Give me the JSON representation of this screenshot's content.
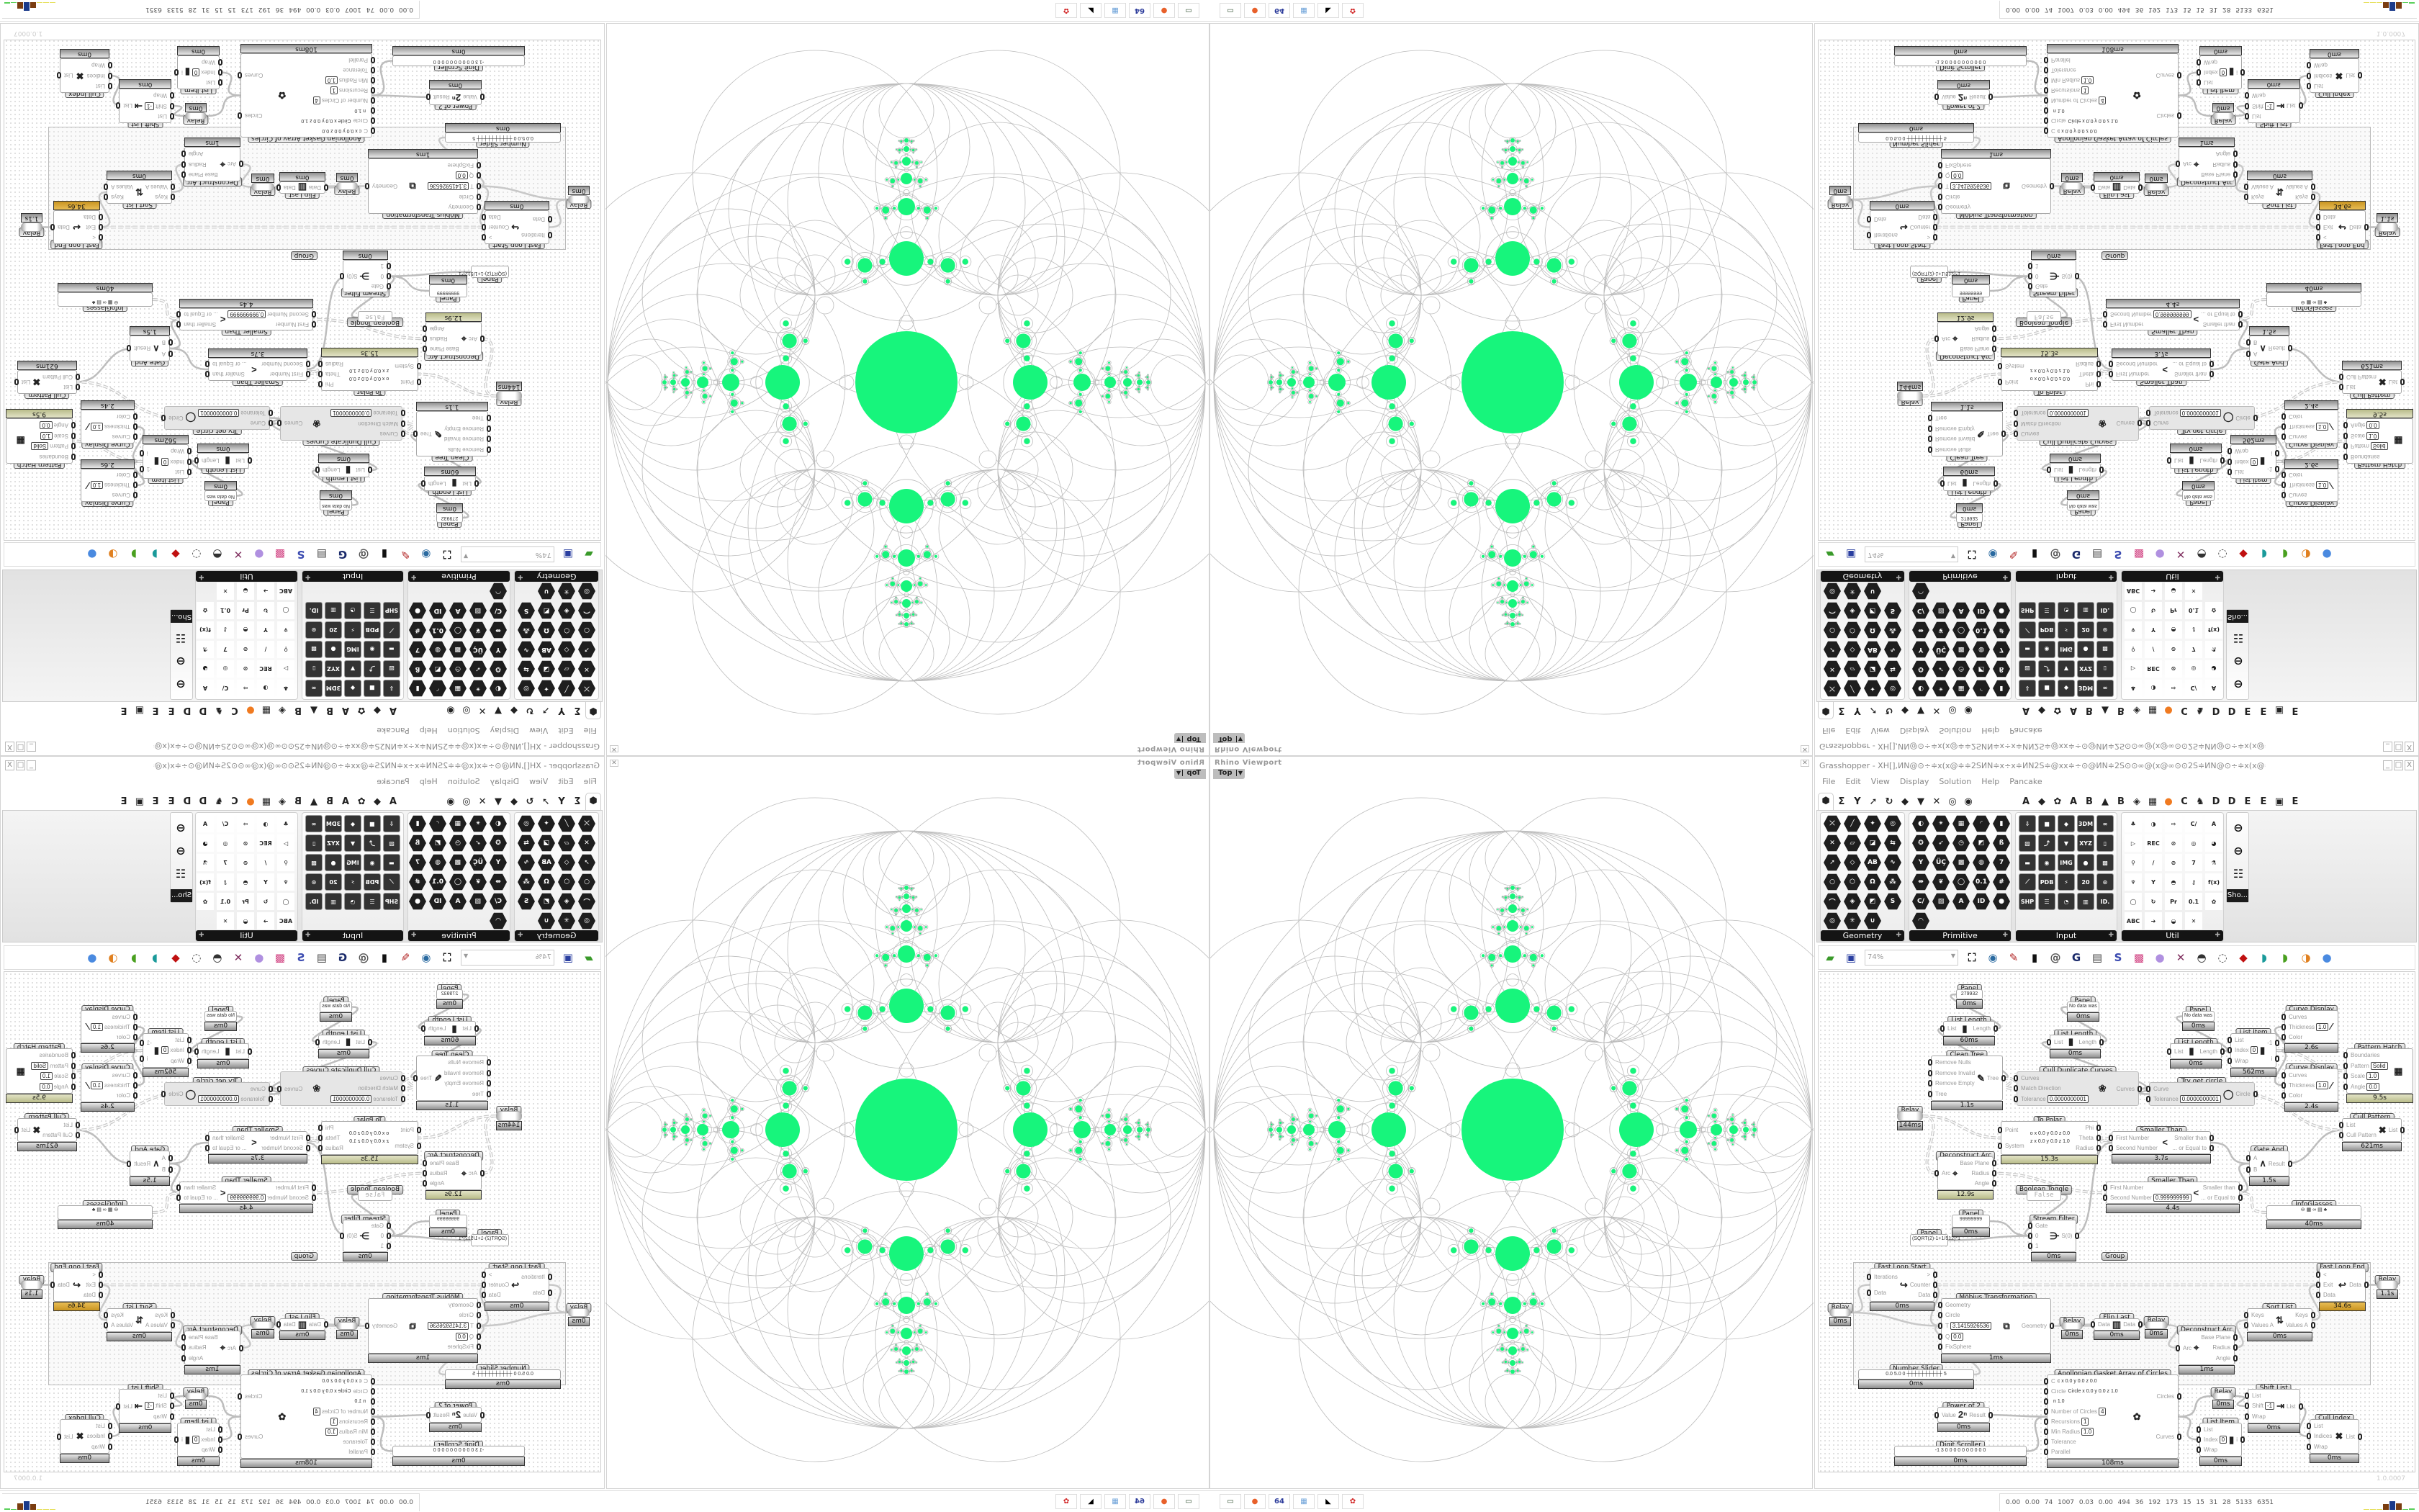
{
  "window": {
    "title": "Grasshopper - XH[],ИN@⊙÷≑x(x@≑≑2SИN≑x÷x≑ИN2S≑@xx≑÷⊙@ИN≑2S⊙⊙∞@(x@∞⊙⊙2S≑ИN@⊙÷≑x(x@≑≑2SИN≑x÷x≑ИN2S≑@xx≑÷⊙@ИN,",
    "controls": {
      "minimize": "_",
      "maximize": "□",
      "close": "X"
    }
  },
  "menu": [
    "File",
    "Edit",
    "View",
    "Display",
    "Solution",
    "Help",
    "Pancake"
  ],
  "tab_row": {
    "icons": [
      "⬢",
      "Σ",
      "Y",
      "➚",
      "↻",
      "◆",
      "▼",
      "✕",
      "◎",
      "◉"
    ],
    "letters": [
      "A",
      "◆",
      "✿",
      "A",
      "B",
      "▲",
      "B",
      "◈",
      "▦",
      "●",
      "C",
      "♞",
      "D",
      "D",
      "E",
      "E",
      "▣",
      "E"
    ]
  },
  "palette": [
    {
      "name": "Geometry",
      "icons": [
        "⤫",
        "╱",
        "✦",
        "◎",
        "✕",
        "▱",
        "◪",
        "⇆",
        "➚",
        "◇",
        "AB",
        "∿",
        "○",
        "⬡",
        "Ω",
        "⁂",
        "⌒",
        "◈",
        "◩",
        "S",
        "◎",
        "✳",
        "∪"
      ]
    },
    {
      "name": "Primitive",
      "icons": [
        "◐",
        "✴",
        "▦",
        "◜",
        "▮",
        "✪",
        "➶",
        "◷",
        "◩",
        "ß",
        "Y",
        "ÜÇ",
        "▩",
        "◍",
        "7",
        "⇹",
        "❦",
        "◯",
        "0.1",
        "#",
        "C/",
        "▨",
        "A",
        "ID",
        "●",
        "◠"
      ]
    },
    {
      "name": "Input",
      "icons": [
        "⇩",
        "■",
        "◆",
        "3DM",
        "∞",
        "▧",
        "⤴",
        "▼",
        "XYZ",
        "▯",
        "▬",
        "◉",
        "IMG",
        "●",
        "▩",
        "⟋",
        "PDB",
        "⚡",
        "20",
        "⊙",
        "SHP",
        "☰",
        "◔",
        "▥",
        "ID."
      ]
    },
    {
      "name": "Util",
      "icons": [
        "♣",
        "◑",
        "⇨",
        "C/",
        "A",
        "▷",
        "REC",
        "⊘",
        "◎",
        "◕",
        "⚲",
        "/",
        "⊘",
        "7",
        "⚗",
        "♆",
        "Y",
        "◓",
        "⚷",
        "f(x)",
        "◯",
        "↻",
        "Pr",
        "0.1",
        "✿",
        "ABC",
        "➔",
        "◒",
        "✕"
      ]
    }
  ],
  "palette_extra": {
    "label": "Sho...",
    "icons": [
      "⊖",
      "⊖",
      "☷"
    ]
  },
  "toolbar": {
    "zoom": "74%",
    "icons": [
      {
        "name": "open-file-icon",
        "glyph": "▰",
        "color": "#3a9a2a"
      },
      {
        "name": "save-file-icon",
        "glyph": "▣",
        "color": "#2a3fa0"
      },
      {
        "name": "zoom-extents-icon",
        "glyph": "⛶",
        "color": "#111111"
      },
      {
        "name": "preview-icon",
        "glyph": "◉",
        "color": "#2a6aa0"
      },
      {
        "name": "sketch-icon",
        "glyph": "✎",
        "color": "#b02020"
      },
      {
        "name": "bake-icon",
        "glyph": "▮",
        "color": "#111111"
      },
      {
        "name": "cluster-icon",
        "glyph": "@",
        "color": "#555555"
      },
      {
        "name": "gha-icon",
        "glyph": "G",
        "color": "#1a2a6a"
      },
      {
        "name": "viewer-icon",
        "glyph": "▤",
        "color": "#444444"
      },
      {
        "name": "search-icon",
        "glyph": "S",
        "color": "#3a4ab0"
      },
      {
        "name": "package-icon",
        "glyph": "▩",
        "color": "#d04080"
      },
      {
        "name": "bulb-icon",
        "glyph": "●",
        "color": "#b090e0"
      },
      {
        "name": "twist-icon",
        "glyph": "✕",
        "color": "#803060"
      },
      {
        "name": "shaded-icon",
        "glyph": "◓",
        "color": "#333333"
      },
      {
        "name": "wireframe-icon",
        "glyph": "◌",
        "color": "#333333"
      },
      {
        "name": "render-icon",
        "glyph": "◆",
        "color": "#c01010"
      },
      {
        "name": "teal-shape-icon",
        "glyph": "◗",
        "color": "#1a9a9a"
      },
      {
        "name": "green-shape-icon",
        "glyph": "◗",
        "color": "#4aa020"
      },
      {
        "name": "orange-sphere-icon",
        "glyph": "◑",
        "color": "#e08020"
      },
      {
        "name": "blue-sphere-icon",
        "glyph": "●",
        "color": "#4a8ae0"
      }
    ]
  },
  "canvas": {
    "group_label": "Group",
    "version": "1.0.0007",
    "components": [
      {
        "label": "Panel",
        "kind": "panel",
        "text": "279932",
        "timer": "0ms"
      },
      {
        "label": "List Length",
        "inputs": [
          "List"
        ],
        "outputs": [
          "Length"
        ],
        "glyph": "▮",
        "timer": "60ms"
      },
      {
        "label": "Clean Tree",
        "inputs": [
          "Remove Nulls",
          "Remove Invalid",
          "Remove Empty",
          "Tree"
        ],
        "outputs": [
          "Tree"
        ],
        "glyph": "✎",
        "timer": "1.1s"
      },
      {
        "label": "Panel",
        "kind": "panel",
        "text": "No data was",
        "timer": "0ms"
      },
      {
        "label": "List Length",
        "inputs": [
          "List"
        ],
        "outputs": [
          "Length"
        ],
        "glyph": "▮",
        "timer": "0ms"
      },
      {
        "label": "Cull Duplicate Curves",
        "state": "disabled",
        "inputs": [
          "Curves",
          "Match Direction",
          "Tolerance"
        ],
        "outputs": [
          "Curves"
        ],
        "params": {
          "Tolerance": "0.0000000001"
        },
        "glyph": "❀"
      },
      {
        "label": "Relay",
        "kind": "relay",
        "timer": "144ms"
      },
      {
        "label": "To Polar",
        "inputs": [
          "Point",
          "System"
        ],
        "outputs": [
          "Phi",
          "Theta",
          "Radius"
        ],
        "extra": [
          "o x 0.0 y 0.0 z 0.0",
          "z x 0.0 y 0.0 z 1.0"
        ],
        "timer": "15.3s",
        "timer_state": "olive"
      },
      {
        "label": "Deconstruct Arc",
        "inputs": [
          "Arc"
        ],
        "outputs": [
          "Base Plane",
          "Radius",
          "Angle"
        ],
        "glyph": "⌖",
        "timer": "12.9s",
        "timer_state": "olive"
      },
      {
        "label": "Boolean Toggle",
        "kind": "toggle",
        "text": "False"
      },
      {
        "label": "Panel",
        "kind": "panel",
        "text": "No data was",
        "timer": "0ms"
      },
      {
        "label": "List Length",
        "inputs": [
          "List"
        ],
        "outputs": [
          "Length"
        ],
        "glyph": "▮",
        "timer": "0ms"
      },
      {
        "label": "List Item",
        "inputs": [
          "List",
          "Index",
          "Wrap"
        ],
        "outputs": [
          "-1",
          "i"
        ],
        "params": {
          "Index": "0"
        },
        "glyph": "▮",
        "timer": "562ms"
      },
      {
        "label": "Curve Display",
        "inputs": [
          "Curves",
          "Thickness",
          "Color"
        ],
        "outputs": [],
        "params": {
          "Thickness": "1.0"
        },
        "glyph": "∕",
        "timer": "2.6s"
      },
      {
        "label": "Curve Display",
        "inputs": [
          "Curves",
          "Thickness",
          "Color"
        ],
        "outputs": [],
        "params": {
          "Thickness": "1.0"
        },
        "glyph": "∕",
        "timer": "2.4s"
      },
      {
        "label": "Pattern Hatch",
        "inputs": [
          "Boundaries",
          "Pattern",
          "Scale",
          "Angle"
        ],
        "outputs": [],
        "params": {
          "Pattern": "Solid",
          "Scale": "1.0",
          "Angle": "0.0"
        },
        "glyph": "▦",
        "timer": "9.5s",
        "timer_state": "olive"
      },
      {
        "label": "Try get circle",
        "state": "disabled",
        "inputs": [
          "Curve",
          "Tolerance"
        ],
        "outputs": [
          "Circle"
        ],
        "params": {
          "Tolerance": "0.0000000001"
        },
        "glyph": "◯"
      },
      {
        "label": "Smaller Than",
        "inputs": [
          "First Number",
          "Second Number"
        ],
        "outputs": [
          "Smaller than",
          "... or Equal to"
        ],
        "glyph": "<",
        "timer": "3.7s"
      },
      {
        "label": "Smaller Than",
        "inputs": [
          "First Number",
          "Second Number"
        ],
        "outputs": [
          "Smaller than",
          "... or Equal to"
        ],
        "params": {
          "Second Number": "0.999999999"
        },
        "glyph": "<",
        "timer": "4.4s"
      },
      {
        "label": "Gate And",
        "inputs": [
          "A",
          "B"
        ],
        "outputs": [
          "Result"
        ],
        "glyph": "∧",
        "timer": "1.5s"
      },
      {
        "label": "Cull Pattern",
        "inputs": [
          "List",
          "Cull Pattern"
        ],
        "outputs": [
          "List"
        ],
        "glyph": "✖",
        "timer": "621ms"
      },
      {
        "label": "Stream Filter",
        "inputs": [
          "Gate",
          "0",
          "1"
        ],
        "outputs": [
          "S(0)"
        ],
        "glyph": "⋺",
        "timer": "0ms"
      },
      {
        "label": "Panel",
        "kind": "panel",
        "text": "99999999",
        "timer": "0ms"
      },
      {
        "label": "Panel",
        "kind": "panel",
        "text": "(SQRT(2)-1+1/512)*1"
      },
      {
        "label": "Fast Loop Start",
        "inputs": [
          "Iterations",
          "Data"
        ],
        "outputs": [
          ">",
          "Counter",
          "Data"
        ],
        "glyph": "↪",
        "timer": "0ms"
      },
      {
        "label": "Relay",
        "kind": "relay",
        "timer": "0ms"
      },
      {
        "label": "Möbius Transformation",
        "inputs": [
          "Geometry",
          "Circle",
          "T",
          "Q",
          "FixSphere"
        ],
        "outputs": [
          "Geometry"
        ],
        "params": {
          "T": "3.1415926536",
          "Q": "0.0"
        },
        "glyph": "⧉",
        "timer": "1ms"
      },
      {
        "label": "Relay",
        "kind": "relay",
        "timer": "0ms"
      },
      {
        "label": "Flip Last",
        "inputs": [
          "Data"
        ],
        "outputs": [
          "Data"
        ],
        "glyph": "▥",
        "timer": "0ms"
      },
      {
        "label": "Number Slider",
        "kind": "slider",
        "text": "0.0  5.0  0  ┼┼┼┼┼┼┼┼┼┼ 5",
        "timer": "0ms"
      },
      {
        "label": "Power of 2",
        "inputs": [
          "Value"
        ],
        "outputs": [
          "Result"
        ],
        "glyph": "2ⁿ",
        "timer": "0ms"
      },
      {
        "label": "Digit Scroller",
        "kind": "scroller",
        "text": "-1 3 0 0 0 0 0 0 0 0 0 0",
        "timer": "0ms"
      },
      {
        "label": "Apollonian Gasket Array of Circles",
        "inputs": [
          "C",
          "Circle",
          "",
          "Number of Circles",
          "Recursions",
          "Min Radius",
          "Tolerance",
          "Parallel"
        ],
        "outputs": [
          "Circles",
          "Curves"
        ],
        "params": {
          "Number of Circles": "4",
          "Recursions": "1",
          "Min Radius": "1.0"
        },
        "extra": [
          "c x 0.0 y 0.0 z 0.0",
          "Circle x 0.0 y 0.0 z 1.0",
          "n 1.0"
        ],
        "glyph": "✿",
        "timer": "108ms"
      },
      {
        "label": "InfoGlasses",
        "kind": "icons",
        "text": "⊖ ▦ ∞ ▤ ♣",
        "timer": "40ms"
      },
      {
        "label": "Fast Loop End",
        "inputs": [
          "<",
          "Exit",
          "Data"
        ],
        "outputs": [
          "Data"
        ],
        "glyph": "↩",
        "timer": "34.6s",
        "timer_state": "gold"
      },
      {
        "label": "Relay",
        "kind": "relay",
        "timer": "1.1s"
      },
      {
        "label": "Relay",
        "kind": "relay",
        "timer": "0ms"
      },
      {
        "label": "Deconstruct Arc",
        "inputs": [
          "Arc"
        ],
        "outputs": [
          "Base Plane",
          "Radius",
          "Angle"
        ],
        "glyph": "⌖",
        "timer": "1ms"
      },
      {
        "label": "Sort List",
        "inputs": [
          "Keys",
          "Values A"
        ],
        "outputs": [
          "Keys",
          "Values A"
        ],
        "glyph": "⇅",
        "timer": "0ms"
      },
      {
        "label": "Relay",
        "kind": "relay",
        "timer": "0ms"
      },
      {
        "label": "Shift List",
        "inputs": [
          "List",
          "Shift",
          "Wrap"
        ],
        "outputs": [
          "List"
        ],
        "params": {
          "Shift": "-1"
        },
        "glyph": "⇥",
        "timer": "0ms"
      },
      {
        "label": "List Item",
        "inputs": [
          "List",
          "Index",
          "Wrap"
        ],
        "outputs": [
          "i"
        ],
        "params": {
          "Index": "0"
        },
        "glyph": "▮",
        "timer": "0ms"
      },
      {
        "label": "Cull Index",
        "inputs": [
          "List",
          "Indices",
          "Wrap"
        ],
        "outputs": [
          "List"
        ],
        "glyph": "✖",
        "timer": "0ms"
      }
    ]
  },
  "viewport": {
    "title": "Rhino Viewport",
    "view": "Top",
    "close": "✕"
  },
  "status": {
    "numbers": "0.00 0.00 74 1007 0.03 0.00 494 36 192 173 15 15 31 28 5133 6351"
  },
  "taskbar": [
    {
      "name": "terminal-icon",
      "glyph": "▭",
      "color": "#2a4a2a"
    },
    {
      "name": "firefox-icon",
      "glyph": "●",
      "color": "#e8602a"
    },
    {
      "name": "floppy-64-icon",
      "glyph": "64",
      "color": "#2a3a9a"
    },
    {
      "name": "calculator-icon",
      "glyph": "▦",
      "color": "#6aa0d8"
    },
    {
      "name": "rhino-icon",
      "glyph": "◣",
      "color": "#000000"
    },
    {
      "name": "red-app-icon",
      "glyph": "✿",
      "color": "#d02020"
    }
  ],
  "colors": {
    "accent_green": "#17f57c",
    "circle_stroke": "#bcbcbc",
    "orange_tab": "#f07a20"
  }
}
